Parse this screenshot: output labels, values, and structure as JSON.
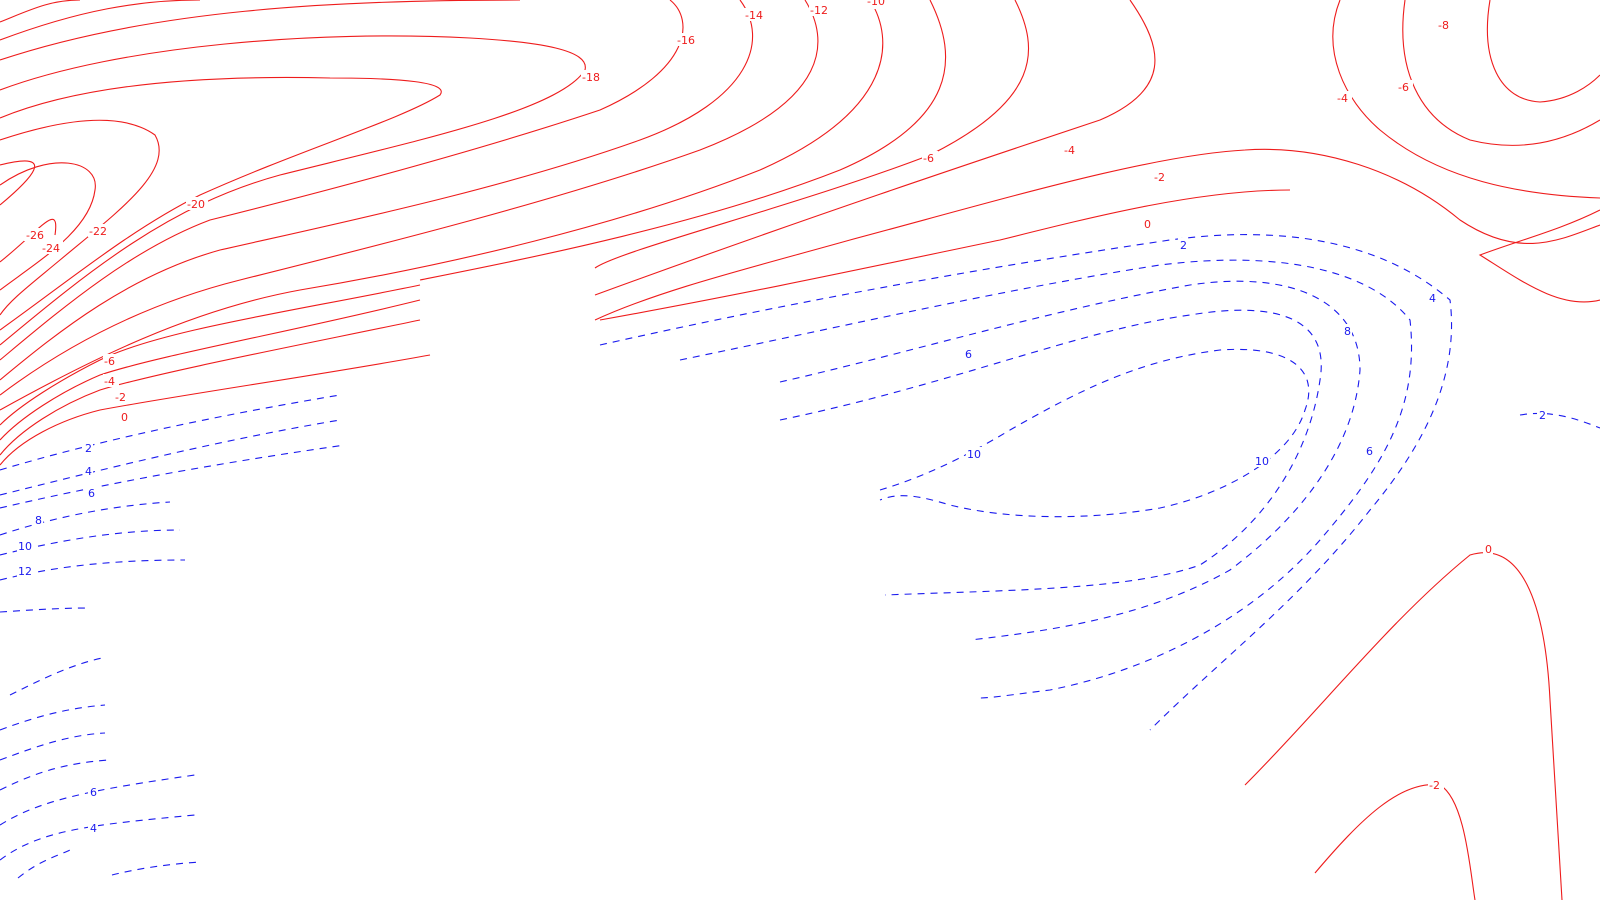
{
  "map": {
    "line_styles": {
      "negative": {
        "color": "#ee1c1c",
        "style": "solid"
      },
      "positive": {
        "color": "#1a1aee",
        "style": "dashed"
      }
    },
    "labels": {
      "m26": "-26",
      "m24": "-24",
      "m22": "-22",
      "m20": "-20",
      "m18": "-18",
      "m16": "-16",
      "m14": "-14",
      "m12": "-12",
      "m10": "-10",
      "m8": "-8",
      "m6": "-6",
      "m4": "-4",
      "m2": "-2",
      "zero": "0",
      "p2": "2",
      "p4": "4",
      "p6": "6",
      "p8": "8",
      "p10": "10",
      "p12": "12"
    }
  }
}
